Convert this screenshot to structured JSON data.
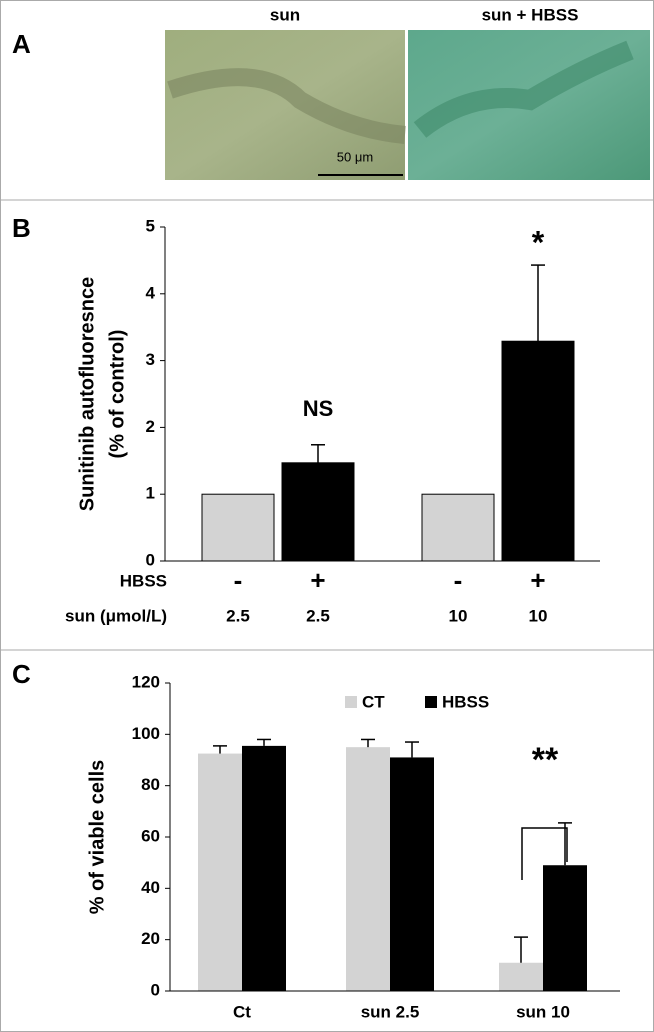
{
  "panel_a": {
    "label": "A",
    "images": [
      "sun",
      "sun + HBSS"
    ],
    "scale_bar": "50 μm"
  },
  "chart_data": [
    {
      "type": "bar",
      "panel_label": "B",
      "ylabel": [
        "Sunitinib autofluoresnce",
        "(% of control)"
      ],
      "values": [
        1,
        1.47,
        1,
        3.29
      ],
      "errors": [
        null,
        0.27,
        null,
        1.14
      ],
      "colors": [
        "#d3d3d3",
        "#000000",
        "#d3d3d3",
        "#000000"
      ],
      "row_labels": [
        "HBSS",
        "sun (μmol/L)"
      ],
      "rows": [
        [
          "-",
          "+",
          "-",
          "+"
        ],
        [
          "2.5",
          "2.5",
          "10",
          "10"
        ]
      ],
      "annotations": [
        "NS",
        "*"
      ],
      "ylim": [
        0,
        5
      ],
      "yticks": [
        0,
        1,
        2,
        3,
        4,
        5
      ]
    },
    {
      "type": "grouped_bar",
      "panel_label": "C",
      "ylabel": "% of viable cells",
      "categories": [
        "Ct",
        "sun 2.5",
        "sun 10"
      ],
      "series": [
        {
          "name": "CT",
          "color": "#d3d3d3",
          "values": [
            92.5,
            95,
            11
          ],
          "errors": [
            3,
            3,
            10
          ]
        },
        {
          "name": "HBSS",
          "color": "#000000",
          "values": [
            95.5,
            91,
            49
          ],
          "errors": [
            2.5,
            6,
            16.5
          ]
        }
      ],
      "annotations": [
        "**"
      ],
      "ylim": [
        0,
        120
      ],
      "yticks": [
        0,
        20,
        40,
        60,
        80,
        100,
        120
      ]
    }
  ]
}
